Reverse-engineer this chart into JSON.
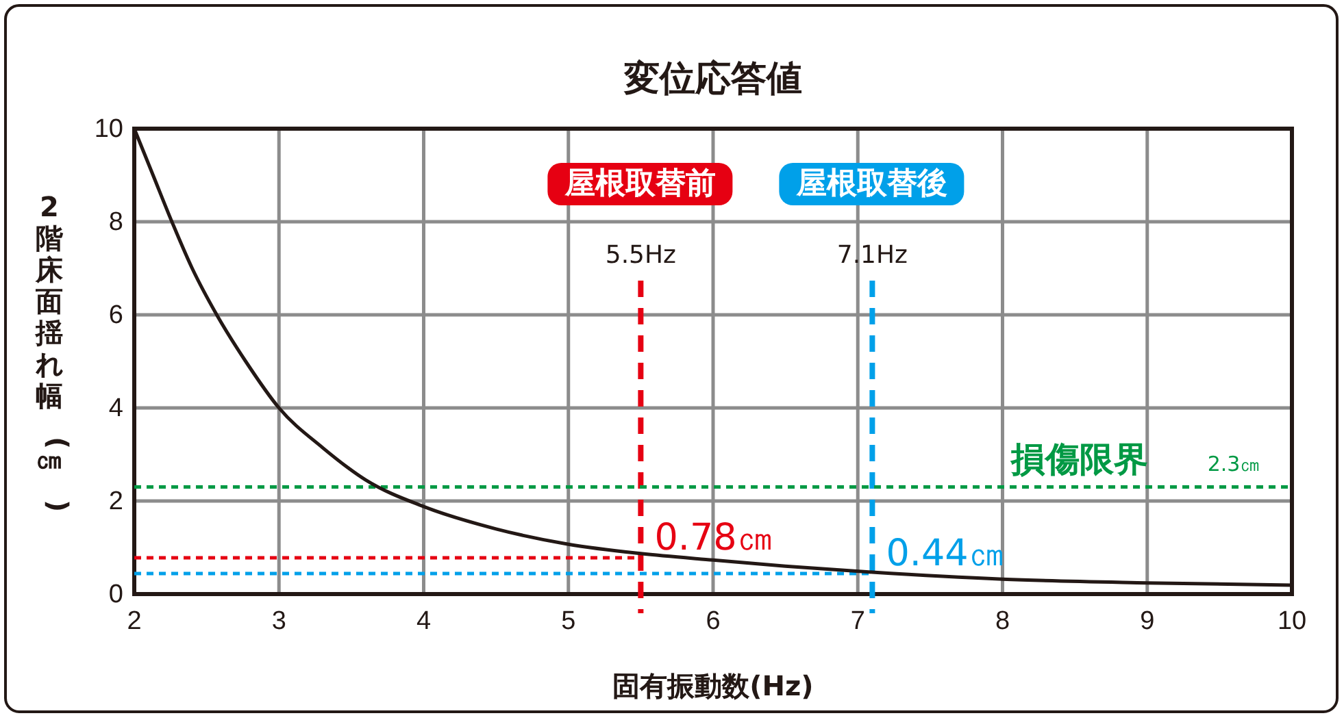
{
  "chart_data": {
    "type": "line",
    "title": "変位応答値",
    "xlabel": "固有振動数(Hz)",
    "ylabel": "2階床面揺れ幅(㎝)",
    "x": [
      2,
      2.13,
      2.26,
      2.4,
      2.57,
      2.77,
      3,
      3.3,
      3.6,
      4,
      4.5,
      5,
      5.5,
      6,
      6.5,
      7.1,
      8,
      9,
      10
    ],
    "series": [
      {
        "color": "#231815",
        "values": [
          10,
          9,
          8,
          7,
          6,
          5,
          4,
          3.15,
          2.45,
          1.88,
          1.4,
          1.07,
          0.87,
          0.73,
          0.6,
          0.47,
          0.32,
          0.24,
          0.19
        ]
      }
    ],
    "xlim": [
      2,
      10
    ],
    "xticks": [
      2,
      3,
      4,
      5,
      6,
      7,
      8,
      9,
      10
    ],
    "ylim": [
      0,
      10
    ],
    "yticks": [
      0,
      2,
      4,
      6,
      8,
      10
    ],
    "grid": true,
    "marker": "none",
    "line_style": "solid",
    "ref_lines": [
      {
        "axis": "x",
        "value": 5.5,
        "label": "5.5Hz",
        "color": "#e60012",
        "line_style": "dashed"
      },
      {
        "axis": "x",
        "value": 7.1,
        "label": "7.1Hz",
        "color": "#00a0e9",
        "line_style": "dashed"
      },
      {
        "axis": "y",
        "value": 2.3,
        "label": "損傷限界",
        "color": "#009944",
        "line_style": "dotted"
      },
      {
        "axis": "y",
        "value": 0.78,
        "label": "0.78㎝",
        "color": "#e60012",
        "line_style": "dotted"
      },
      {
        "axis": "y",
        "value": 0.44,
        "label": "0.44㎝",
        "color": "#00a0e9",
        "line_style": "dotted"
      }
    ],
    "annotations": [
      "屋根取替前",
      "屋根取替後",
      {
        "text": "2.3㎝",
        "x": 9.6,
        "y": 2.3
      }
    ]
  }
}
